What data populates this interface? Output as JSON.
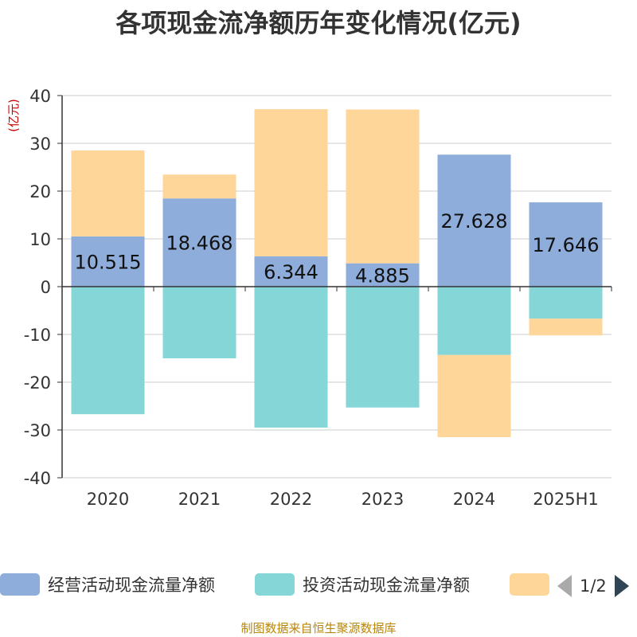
{
  "chart_data": {
    "type": "bar",
    "stacked": true,
    "title": "各项现金流净额历年变化情况(亿元)",
    "ylabel": "(亿元)",
    "categories": [
      "2020",
      "2021",
      "2022",
      "2023",
      "2024",
      "2025H1"
    ],
    "ylim": [
      -40,
      40
    ],
    "yticks": [
      40,
      30,
      20,
      10,
      0,
      -10,
      -20,
      -30,
      -40
    ],
    "grid": true,
    "series": [
      {
        "name": "经营活动现金流量净额",
        "color": "#8eadda",
        "values": [
          10.515,
          18.468,
          6.344,
          4.885,
          27.628,
          17.646
        ]
      },
      {
        "name": "投资活动现金流量净额",
        "color": "#85d6d6",
        "values": [
          -26.7,
          -15.0,
          -29.5,
          -25.3,
          -14.3,
          -6.7
        ]
      },
      {
        "color": "#ffd699",
        "values": [
          18.0,
          5.0,
          30.8,
          32.2,
          -17.2,
          -3.5
        ]
      }
    ],
    "data_labels": [
      "10.515",
      "18.468",
      "6.344",
      "4.885",
      "27.628",
      "17.646"
    ],
    "legend_position": "bottom"
  },
  "legend": {
    "items": [
      {
        "label": "经营活动现金流量净额",
        "color": "#8eadda"
      },
      {
        "label": "投资活动现金流量净额",
        "color": "#85d6d6"
      },
      {
        "label": "",
        "color": "#ffd699"
      }
    ],
    "page": "1/2"
  },
  "source": "制图数据来自恒生聚源数据库"
}
